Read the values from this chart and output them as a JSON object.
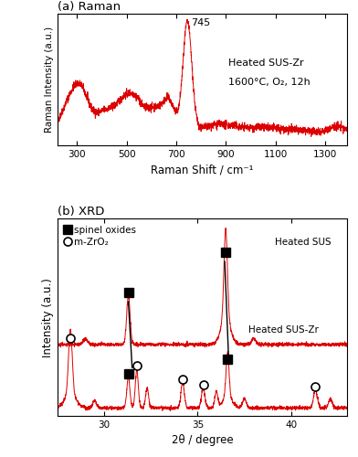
{
  "raman_title": "(a) Raman",
  "xrd_title": "(b) XRD",
  "raman_xlabel": "Raman Shift / cm⁻¹",
  "raman_ylabel": "Raman Intensity (a.u.)",
  "xrd_xlabel": "2θ / degree",
  "xrd_ylabel": "Intensity (a.u.)",
  "raman_xlim": [
    220,
    1390
  ],
  "raman_xticks": [
    300,
    500,
    700,
    900,
    1100,
    1300
  ],
  "xrd_xlim": [
    27.5,
    43
  ],
  "xrd_xticks": [
    30,
    35,
    40
  ],
  "line_color": "#dd0000",
  "peak_label_745": "745",
  "label_sus": "Heated SUS",
  "label_suszr": "Heated SUS-Zr",
  "label_condition": "1600°C, O₂, 12h",
  "legend_spinel": "spinel oxides",
  "legend_zro2": "m-ZrO₂",
  "background": "#ffffff"
}
